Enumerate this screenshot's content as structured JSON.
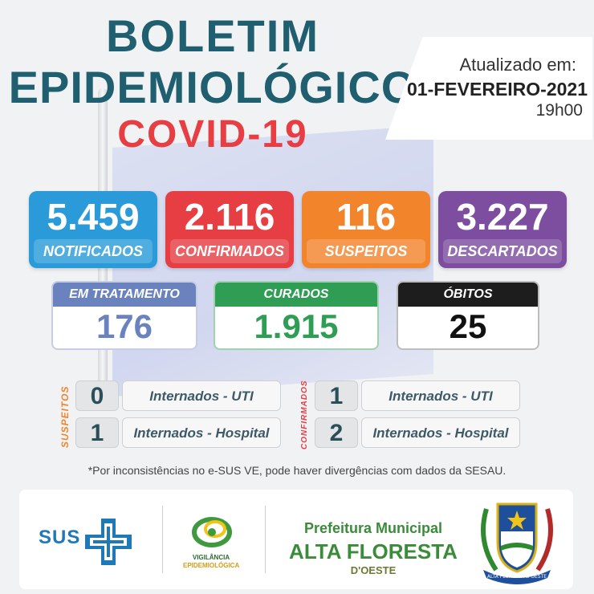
{
  "header": {
    "title_line1": "BOLETIM",
    "title_line2": "EPIDEMIOLÓGICO",
    "title_line3": "COVID-19"
  },
  "update": {
    "label": "Atualizado em:",
    "date": "01-FEVEREIRO-2021",
    "time": "19h00"
  },
  "stats": [
    {
      "value": "5.459",
      "label": "NOTIFICADOS",
      "color": "#2a9bd8"
    },
    {
      "value": "2.116",
      "label": "CONFIRMADOS",
      "color": "#e63e42"
    },
    {
      "value": "116",
      "label": "SUSPEITOS",
      "color": "#f2842c"
    },
    {
      "value": "3.227",
      "label": "DESCARTADOS",
      "color": "#7d4ea0"
    }
  ],
  "status": {
    "treatment": {
      "label": "EM TRATAMENTO",
      "value": "176",
      "color": "#6a82bd"
    },
    "cured": {
      "label": "CURADOS",
      "value": "1.915",
      "color": "#2f9e54"
    },
    "deaths": {
      "label": "ÓBITOS",
      "value": "25",
      "color": "#1d1d1d"
    }
  },
  "hospital": {
    "suspects": {
      "label": "SUSPEITOS",
      "uti_count": "0",
      "uti_label": "Internados - UTI",
      "hosp_count": "1",
      "hosp_label": "Internados - Hospital"
    },
    "confirmed": {
      "label": "CONFIRMADOS",
      "uti_count": "1",
      "uti_label": "Internados - UTI",
      "hosp_count": "2",
      "hosp_label": "Internados - Hospital"
    }
  },
  "note": "*Por inconsistências no e-SUS VE, pode haver divergências com dados da SESAU.",
  "footer": {
    "sus": "SUS",
    "vigilancia_1": "VIGILÂNCIA",
    "vigilancia_2": "EPIDEMIOLÓGICA",
    "pref_1": "Prefeitura Municipal",
    "pref_2": "ALTA FLORESTA",
    "pref_3": "D'OESTE",
    "crest_banner": "ALTA FLORESTA D'OESTE",
    "icons": [
      "sus-cross-icon",
      "vigilancia-logo-icon",
      "municipal-crest-icon"
    ]
  }
}
